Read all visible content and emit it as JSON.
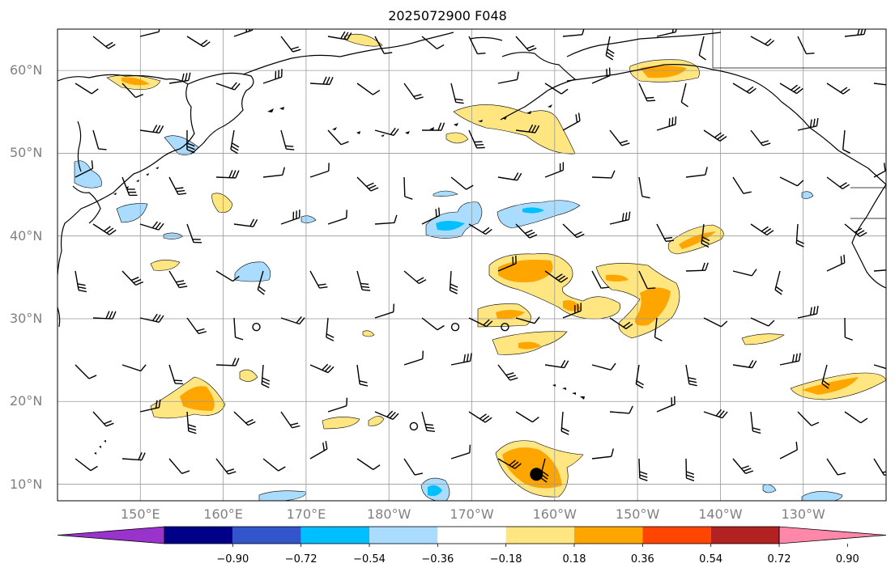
{
  "title": "2025072900 F048",
  "map": {
    "extent": {
      "lon_min": 140,
      "lon_max": 240,
      "lat_min": 8,
      "lat_max": 65
    },
    "lat_ticks": [
      "10°N",
      "20°N",
      "30°N",
      "40°N",
      "50°N",
      "60°N"
    ],
    "lat_values": [
      10,
      20,
      30,
      40,
      50,
      60
    ],
    "lon_ticks": [
      "150°E",
      "160°E",
      "170°E",
      "180°W",
      "170°W",
      "160°W",
      "150°W",
      "140°W",
      "130°W"
    ],
    "lon_values": [
      150,
      160,
      170,
      180,
      190,
      200,
      210,
      220,
      230
    ],
    "grid": true,
    "marker": {
      "lon": 197.8,
      "lat": 11.2
    },
    "calm_circles": [
      [
        164,
        29
      ],
      [
        188,
        29
      ],
      [
        194,
        29
      ],
      [
        183,
        17
      ]
    ]
  },
  "colorbar": {
    "levels": [
      "−0.90",
      "−0.72",
      "−0.54",
      "−0.36",
      "−0.18",
      "0.18",
      "0.36",
      "0.54",
      "0.72",
      "0.90"
    ],
    "colors": [
      "#9933cc",
      "#000088",
      "#3355cc",
      "#00bfff",
      "#aadcff",
      "#ffffff",
      "#ffe680",
      "#ffa500",
      "#ff4500",
      "#b22222",
      "#ff88aa"
    ],
    "extend": "both"
  }
}
